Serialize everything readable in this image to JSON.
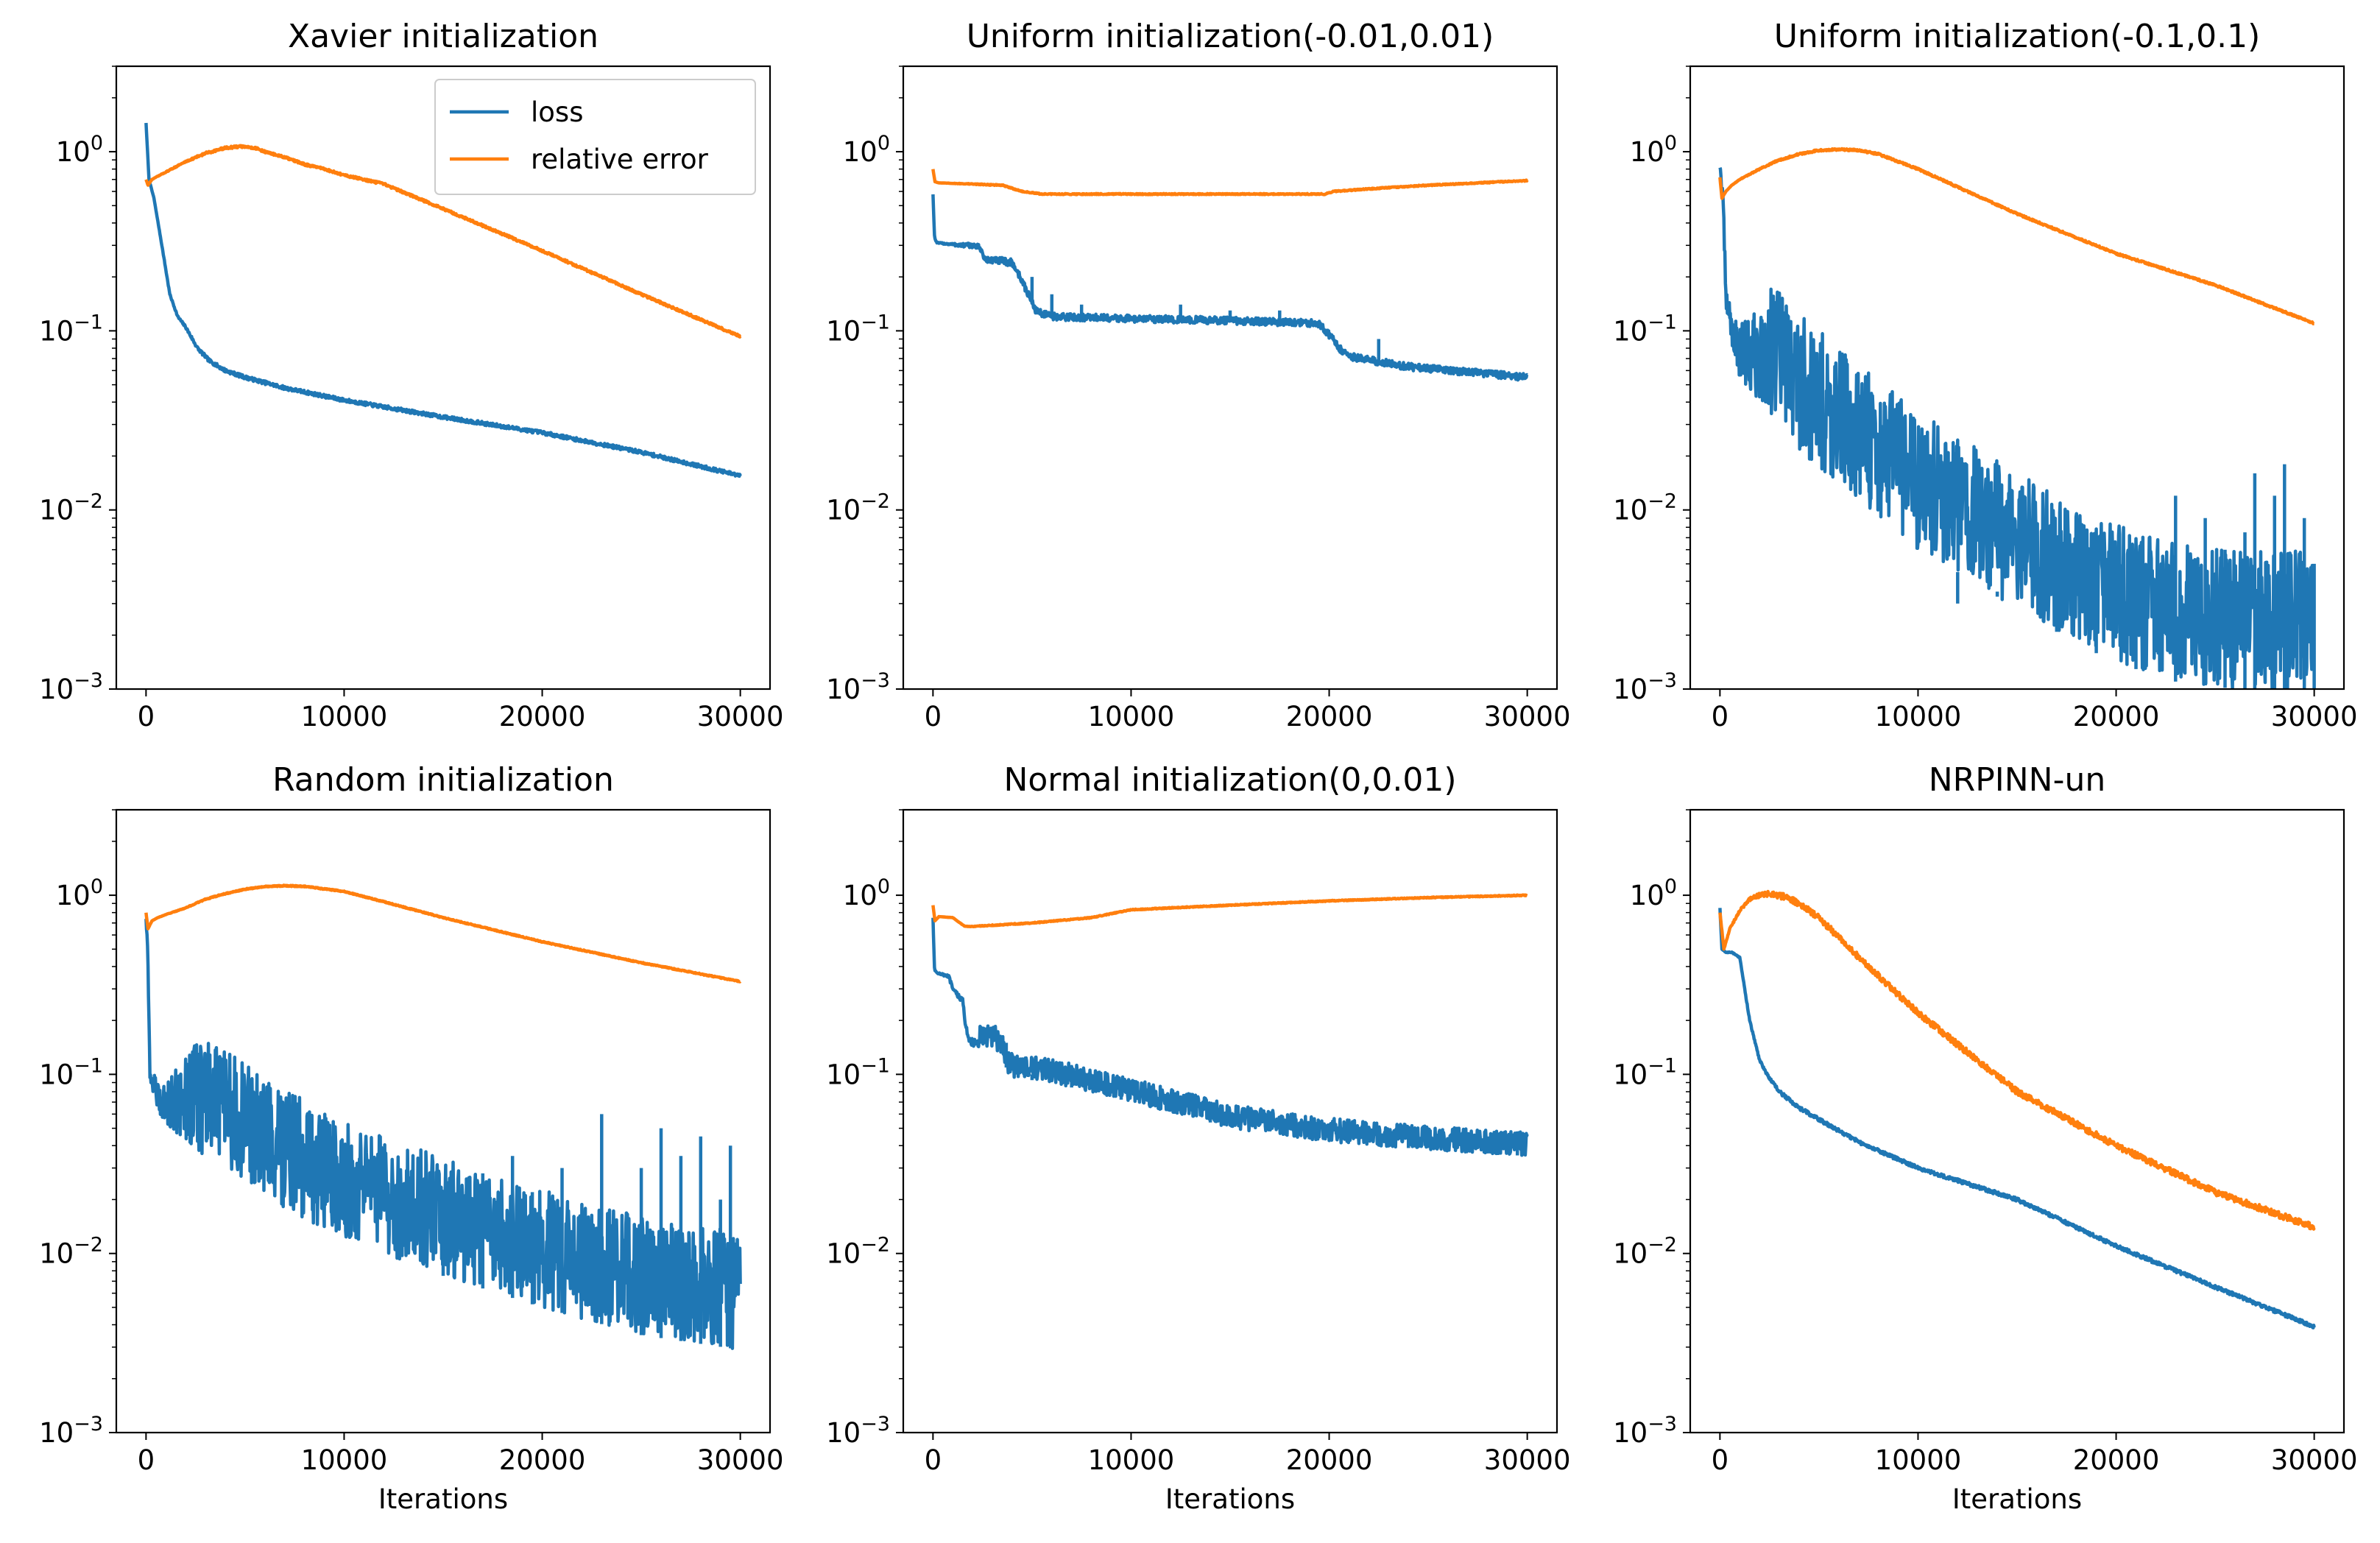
{
  "colors": {
    "loss": "#1f77b4",
    "relative_error": "#ff7f0e"
  },
  "chart_data": [
    {
      "type": "line",
      "title": "Xavier initialization",
      "xlabel": "",
      "ylabel": "",
      "yscale": "log",
      "xlim": [
        -1500,
        31500
      ],
      "ylim": [
        0.001,
        3
      ],
      "xticks": [
        0,
        10000,
        20000,
        30000
      ],
      "xtick_labels": [
        "0",
        "10000",
        "20000",
        "30000"
      ],
      "ytick_labels": [
        {
          "base": "10",
          "exp": "0"
        },
        {
          "base": "10",
          "exp": "−1"
        },
        {
          "base": "10",
          "exp": "−2"
        },
        {
          "base": "10",
          "exp": "−3"
        }
      ],
      "legend": {
        "entries": [
          "loss",
          "relative error"
        ],
        "location": "upper right"
      },
      "series": [
        {
          "name": "loss",
          "noise": 0.02,
          "spikes": [],
          "x": [
            0,
            150,
            400,
            800,
            1200,
            1600,
            2000,
            2600,
            3200,
            4000,
            5000,
            7000,
            10000,
            15000,
            20000,
            25000,
            30000
          ],
          "values": [
            1.45,
            0.7,
            0.55,
            0.3,
            0.16,
            0.12,
            0.105,
            0.08,
            0.068,
            0.06,
            0.055,
            0.048,
            0.041,
            0.033,
            0.027,
            0.021,
            0.0155
          ]
        },
        {
          "name": "relative error",
          "noise": 0.012,
          "spikes": [],
          "x": [
            0,
            100,
            300,
            600,
            1000,
            2000,
            3000,
            4000,
            4800,
            5500,
            6000,
            7000,
            8000,
            9000,
            10000,
            12000,
            15000,
            20000,
            25000,
            30000
          ],
          "values": [
            0.7,
            0.65,
            0.7,
            0.73,
            0.77,
            0.88,
            0.98,
            1.05,
            1.07,
            1.05,
            1.0,
            0.93,
            0.85,
            0.8,
            0.74,
            0.66,
            0.48,
            0.28,
            0.16,
            0.093
          ]
        }
      ]
    },
    {
      "type": "line",
      "title": "Uniform initialization(-0.01,0.01)",
      "xlabel": "",
      "ylabel": "",
      "yscale": "log",
      "xlim": [
        -1500,
        31500
      ],
      "ylim": [
        0.001,
        3
      ],
      "xticks": [
        0,
        10000,
        20000,
        30000
      ],
      "xtick_labels": [
        "0",
        "10000",
        "20000",
        "30000"
      ],
      "ytick_labels": [
        {
          "base": "10",
          "exp": "0"
        },
        {
          "base": "10",
          "exp": "−1"
        },
        {
          "base": "10",
          "exp": "−2"
        },
        {
          "base": "10",
          "exp": "−3"
        }
      ],
      "series": [
        {
          "name": "loss",
          "noise": 0.04,
          "spikes": [
            [
              5000,
              0.2
            ],
            [
              6000,
              0.16
            ],
            [
              7500,
              0.14
            ],
            [
              12500,
              0.14
            ],
            [
              15000,
              0.13
            ],
            [
              17500,
              0.13
            ],
            [
              22500,
              0.09
            ]
          ],
          "x": [
            0,
            80,
            200,
            1500,
            2000,
            2400,
            2600,
            3500,
            4000,
            4400,
            4800,
            5200,
            5500,
            6000,
            10000,
            15000,
            19500,
            20200,
            20600,
            21000,
            24000,
            30000
          ],
          "values": [
            0.58,
            0.33,
            0.31,
            0.3,
            0.3,
            0.29,
            0.25,
            0.245,
            0.24,
            0.2,
            0.16,
            0.13,
            0.125,
            0.12,
            0.117,
            0.114,
            0.11,
            0.09,
            0.078,
            0.072,
            0.063,
            0.055
          ]
        },
        {
          "name": "relative error",
          "noise": 0.006,
          "spikes": [],
          "x": [
            0,
            100,
            300,
            2000,
            3500,
            4500,
            5500,
            7000,
            10000,
            15000,
            19800,
            20200,
            22000,
            25000,
            30000
          ],
          "values": [
            0.8,
            0.68,
            0.67,
            0.66,
            0.65,
            0.6,
            0.58,
            0.58,
            0.58,
            0.58,
            0.58,
            0.6,
            0.62,
            0.65,
            0.69
          ]
        }
      ]
    },
    {
      "type": "line",
      "title": "Uniform initialization(-0.1,0.1)",
      "xlabel": "",
      "ylabel": "",
      "yscale": "log",
      "xlim": [
        -1500,
        31500
      ],
      "ylim": [
        0.001,
        3
      ],
      "xticks": [
        0,
        10000,
        20000,
        30000
      ],
      "xtick_labels": [
        "0",
        "10000",
        "20000",
        "30000"
      ],
      "ytick_labels": [
        {
          "base": "10",
          "exp": "0"
        },
        {
          "base": "10",
          "exp": "−1"
        },
        {
          "base": "10",
          "exp": "−2"
        },
        {
          "base": "10",
          "exp": "−3"
        }
      ],
      "series": [
        {
          "name": "loss",
          "noise": 0.35,
          "spikes": [
            [
              12000,
              0.003
            ],
            [
              14000,
              0.0035
            ],
            [
              17000,
              0.003
            ],
            [
              19000,
              0.004
            ],
            [
              21000,
              0.004
            ],
            [
              23000,
              0.012
            ],
            [
              24500,
              0.009
            ],
            [
              25500,
              0.006
            ],
            [
              26500,
              0.0075
            ],
            [
              27000,
              0.016
            ],
            [
              28000,
              0.012
            ],
            [
              28500,
              0.018
            ],
            [
              29500,
              0.009
            ],
            [
              30000,
              0.005
            ]
          ],
          "x": [
            0,
            80,
            200,
            300,
            500,
            700,
            1000,
            1500,
            2000,
            2500,
            3000,
            4000,
            5000,
            7000,
            10000,
            12000,
            15000,
            18000,
            20000,
            23000,
            26000,
            30000
          ],
          "values": [
            0.75,
            0.6,
            0.35,
            0.13,
            0.1,
            0.07,
            0.055,
            0.045,
            0.04,
            0.035,
            0.03,
            0.022,
            0.017,
            0.011,
            0.006,
            0.0045,
            0.0028,
            0.0018,
            0.0014,
            0.0011,
            0.001,
            0.001
          ]
        },
        {
          "name": "relative error",
          "noise": 0.01,
          "spikes": [],
          "x": [
            0,
            100,
            300,
            600,
            1000,
            2000,
            3000,
            4000,
            5000,
            6000,
            7000,
            8000,
            10000,
            15000,
            20000,
            25000,
            30000
          ],
          "values": [
            0.72,
            0.55,
            0.6,
            0.65,
            0.7,
            0.8,
            0.9,
            0.97,
            1.02,
            1.03,
            1.02,
            0.97,
            0.8,
            0.45,
            0.27,
            0.18,
            0.11
          ]
        }
      ]
    },
    {
      "type": "line",
      "title": "Random initialization",
      "xlabel": "Iterations",
      "ylabel": "",
      "yscale": "log",
      "xlim": [
        -1500,
        31500
      ],
      "ylim": [
        0.001,
        3
      ],
      "xticks": [
        0,
        10000,
        20000,
        30000
      ],
      "xtick_labels": [
        "0",
        "10000",
        "20000",
        "30000"
      ],
      "ytick_labels": [
        {
          "base": "10",
          "exp": "0"
        },
        {
          "base": "10",
          "exp": "−1"
        },
        {
          "base": "10",
          "exp": "−2"
        },
        {
          "base": "10",
          "exp": "−3"
        }
      ],
      "series": [
        {
          "name": "loss",
          "noise": 0.3,
          "spikes": [
            [
              15000,
              0.02
            ],
            [
              17000,
              0.028
            ],
            [
              18500,
              0.035
            ],
            [
              19500,
              0.022
            ],
            [
              21000,
              0.03
            ],
            [
              23000,
              0.06
            ],
            [
              25000,
              0.03
            ],
            [
              26000,
              0.05
            ],
            [
              27000,
              0.035
            ],
            [
              28000,
              0.045
            ],
            [
              29000,
              0.02
            ],
            [
              29500,
              0.04
            ]
          ],
          "x": [
            0,
            80,
            200,
            400,
            600,
            1000,
            1500,
            2000,
            3000,
            5000,
            7000,
            10000,
            15000,
            20000,
            25000,
            30000
          ],
          "values": [
            0.75,
            0.5,
            0.1,
            0.08,
            0.06,
            0.052,
            0.047,
            0.042,
            0.035,
            0.025,
            0.018,
            0.012,
            0.0075,
            0.005,
            0.0035,
            0.0029
          ]
        },
        {
          "name": "relative error",
          "noise": 0.006,
          "spikes": [],
          "x": [
            0,
            100,
            300,
            600,
            1000,
            2000,
            3000,
            4000,
            5000,
            6000,
            7000,
            8000,
            10000,
            12000,
            15000,
            20000,
            25000,
            30000
          ],
          "values": [
            0.8,
            0.65,
            0.72,
            0.75,
            0.78,
            0.85,
            0.95,
            1.02,
            1.08,
            1.12,
            1.13,
            1.12,
            1.05,
            0.92,
            0.75,
            0.55,
            0.42,
            0.33
          ]
        }
      ]
    },
    {
      "type": "line",
      "title": "Normal initialization(0,0.01)",
      "xlabel": "Iterations",
      "ylabel": "",
      "yscale": "log",
      "xlim": [
        -1500,
        31500
      ],
      "ylim": [
        0.001,
        3
      ],
      "xticks": [
        0,
        10000,
        20000,
        30000
      ],
      "xtick_labels": [
        "0",
        "10000",
        "20000",
        "30000"
      ],
      "ytick_labels": [
        {
          "base": "10",
          "exp": "0"
        },
        {
          "base": "10",
          "exp": "−1"
        },
        {
          "base": "10",
          "exp": "−2"
        },
        {
          "base": "10",
          "exp": "−3"
        }
      ],
      "series": [
        {
          "name": "loss",
          "noise": 0.06,
          "spikes": [
            [
              3700,
              0.15
            ],
            [
              5000,
              0.1
            ],
            [
              7000,
              0.095
            ],
            [
              9500,
              0.08
            ],
            [
              11000,
              0.075
            ],
            [
              14000,
              0.06
            ],
            [
              19000,
              0.05
            ],
            [
              24000,
              0.045
            ],
            [
              28000,
              0.045
            ],
            [
              29500,
              0.048
            ]
          ],
          "x": [
            0,
            80,
            200,
            800,
            1000,
            1200,
            1500,
            1600,
            1800,
            2000,
            3000,
            3500,
            3800,
            4200,
            6000,
            10000,
            13000,
            15000,
            20000,
            25000,
            30000
          ],
          "values": [
            0.75,
            0.38,
            0.37,
            0.35,
            0.3,
            0.28,
            0.26,
            0.2,
            0.16,
            0.15,
            0.14,
            0.13,
            0.1,
            0.095,
            0.09,
            0.07,
            0.058,
            0.05,
            0.042,
            0.038,
            0.035
          ]
        },
        {
          "name": "relative error",
          "noise": 0.005,
          "spikes": [],
          "x": [
            0,
            100,
            300,
            1000,
            1600,
            2000,
            3000,
            5000,
            8000,
            10000,
            15000,
            20000,
            25000,
            30000
          ],
          "values": [
            0.88,
            0.72,
            0.76,
            0.75,
            0.67,
            0.67,
            0.68,
            0.7,
            0.75,
            0.83,
            0.88,
            0.93,
            0.97,
            1.0
          ]
        }
      ]
    },
    {
      "type": "line",
      "title": "NRPINN-un",
      "xlabel": "Iterations",
      "ylabel": "",
      "yscale": "log",
      "xlim": [
        -1500,
        31500
      ],
      "ylim": [
        0.001,
        3
      ],
      "xticks": [
        0,
        10000,
        20000,
        30000
      ],
      "xtick_labels": [
        "0",
        "10000",
        "20000",
        "30000"
      ],
      "ytick_labels": [
        {
          "base": "10",
          "exp": "0"
        },
        {
          "base": "10",
          "exp": "−1"
        },
        {
          "base": "10",
          "exp": "−2"
        },
        {
          "base": "10",
          "exp": "−3"
        }
      ],
      "series": [
        {
          "name": "loss",
          "noise": 0.02,
          "spikes": [],
          "x": [
            0,
            100,
            300,
            600,
            1000,
            1500,
            2000,
            2500,
            3000,
            4000,
            5000,
            7000,
            10000,
            15000,
            20000,
            25000,
            30000
          ],
          "values": [
            0.85,
            0.5,
            0.48,
            0.48,
            0.45,
            0.2,
            0.12,
            0.095,
            0.08,
            0.065,
            0.056,
            0.042,
            0.03,
            0.02,
            0.011,
            0.0065,
            0.0039
          ]
        },
        {
          "name": "relative error",
          "noise": 0.035,
          "spikes": [],
          "x": [
            0,
            200,
            500,
            1000,
            1500,
            2000,
            2500,
            3000,
            3500,
            4000,
            5000,
            7000,
            10000,
            15000,
            20000,
            25000,
            30000
          ],
          "values": [
            0.8,
            0.5,
            0.65,
            0.82,
            0.95,
            1.0,
            1.02,
            1.0,
            0.96,
            0.9,
            0.75,
            0.45,
            0.22,
            0.08,
            0.04,
            0.022,
            0.014
          ]
        }
      ]
    }
  ]
}
